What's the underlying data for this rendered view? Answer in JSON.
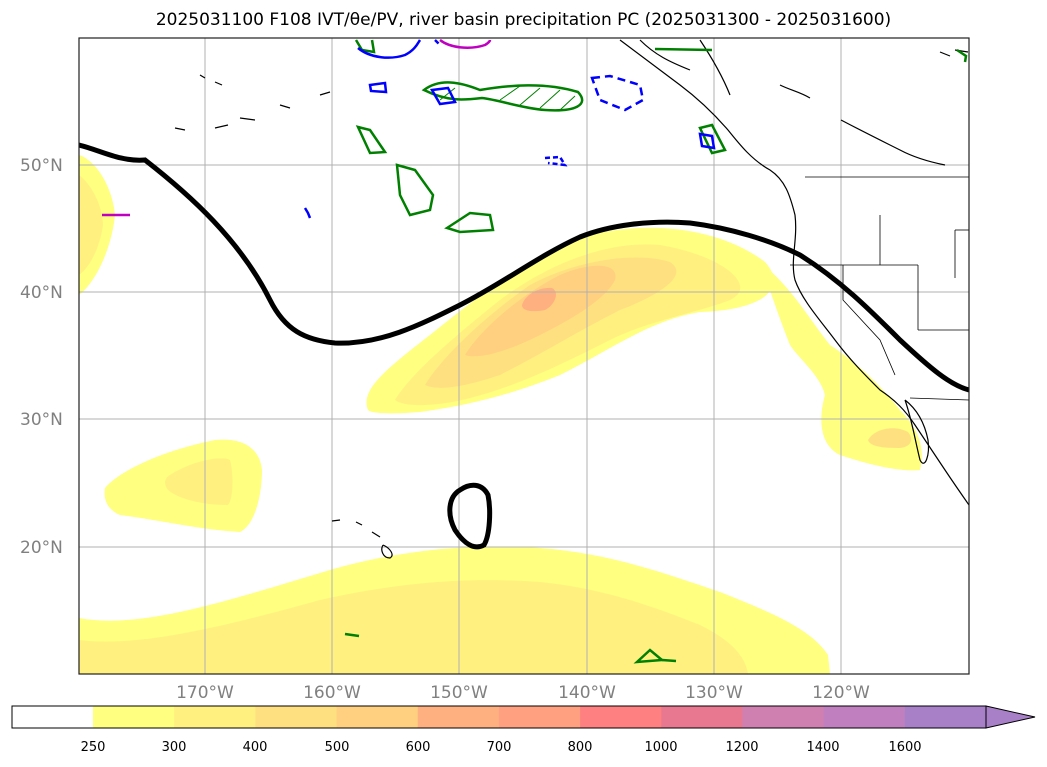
{
  "header": {
    "title": "2025031100 F108 IVT/θe/PV, river basin precipitation PC (2025031300 - 2025031600)"
  },
  "map": {
    "lat_labels": [
      "50°N",
      "40°N",
      "30°N",
      "20°N"
    ],
    "lon_labels": [
      "170°W",
      "160°W",
      "150°W",
      "140°W",
      "130°W",
      "120°W"
    ],
    "extent": {
      "lon_min": -183,
      "lon_max": -113,
      "lat_min": 10,
      "lat_max": 60
    },
    "gridlines": true,
    "layers": [
      "IVT shading",
      "theta-e contour (black)",
      "PV contours (green/blue/magenta)",
      "coastlines"
    ]
  },
  "colorbar": {
    "ticks": [
      "250",
      "300",
      "400",
      "500",
      "600",
      "700",
      "800",
      "1000",
      "1200",
      "1400",
      "1600"
    ],
    "colors": [
      "#ffffff",
      "#ffff80",
      "#fff080",
      "#ffe080",
      "#ffd080",
      "#ffb080",
      "#ffa080",
      "#ff8080",
      "#e87890",
      "#d080b0",
      "#c080c0",
      "#a880c8"
    ],
    "extend": "max"
  },
  "palette": {
    "ivt_250": "#ffff80",
    "ivt_300": "#fff080",
    "ivt_400": "#ffe080",
    "ivt_500": "#ffc880",
    "theta_e": "#000000",
    "pv_green": "#008000",
    "pv_blue": "#0000ff",
    "pv_magenta": "#c000c0",
    "grid": "#b0b0b0"
  }
}
